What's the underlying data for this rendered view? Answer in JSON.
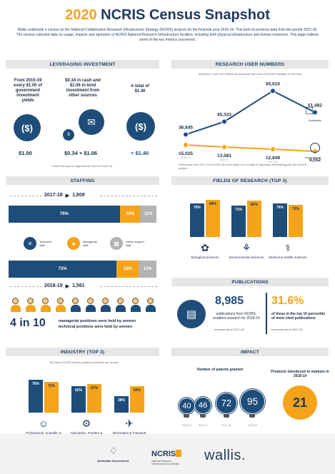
{
  "title": {
    "year": "2020",
    "rest": "NCRIS Census Snapshot"
  },
  "intro": "Wallis undertook a census on the National Collaborative Research Infrastructure Strategy (NCRIS) projects for the financial year 2018-19. This built on previous data from the period 2015-18. The census collected data on usage, impacts and operation of NCRIS National Research Infrastructure facilities, including both physical infrastructure and human resources. This page outlines some of the key metrics uncovered.",
  "investment": {
    "header": "LEVERAGING INVESTMENT",
    "col1": "From 2015-19 every $1.00 of government investment yields",
    "col2": "$0.34 in cash and $1.06 in-kind investment from other sources",
    "col3": "A total of $1.40",
    "v1": "$1.00",
    "v2": "$0.34 + $1.06",
    "v3": "= $1.40",
    "note": "Fixed 2019 prices adjusted for 2015 to 2019-19"
  },
  "users": {
    "header": "RESEARCH USER NUMBERS",
    "sub": "Research Users are defined as personal end-users of NCRIS facilities or services",
    "note": "*Decrease from 2017-18 to 2018-19 is the result of a change in reporting methodology by one NCRIS project",
    "aus_label": "Australian",
    "intl_label": "International"
  },
  "staffing": {
    "header": "STAFFING",
    "y1": "2017-18",
    "n1": "1,809",
    "y2": "2018-19",
    "n2": "1,561",
    "leg1": "Technical staff",
    "leg2": "Managerial staff",
    "leg3": "Admin support staff",
    "ratio": "4 in 10",
    "ratio1": "managerial positions were held by women",
    "ratio2": "technical positions were held by women"
  },
  "fields": {
    "header": "FIELDS OF RESEARCH (TOP 3)",
    "items": [
      {
        "label": "Biological Sciences",
        "a": "76%",
        "b": "84%"
      },
      {
        "label": "Environmental Sciences",
        "a": "71%",
        "b": "82%"
      },
      {
        "label": "Medical & Health Sciences",
        "a": "76%",
        "b": "72%"
      }
    ]
  },
  "pubs": {
    "header": "PUBLICATIONS",
    "n": "8,985",
    "desc": "publications from NCRIS-enabled research for 2018-19",
    "trend": "Increase since 2017-18",
    "pct": "31.6%",
    "pct_desc": "of these in the top 10 percentile of most cited publications",
    "pct_trend": "Decrease since 2017-18"
  },
  "industry": {
    "header": "INDUSTRY (TOP 3)",
    "sub": "Top three NCRIS industry partner industries by income",
    "items": [
      {
        "label": "Professional, Scientific & Technical Services",
        "a": "76%",
        "b": "71%"
      },
      {
        "label": "Agriculture, Forestry & Fishing",
        "a": "62%",
        "b": "67%"
      },
      {
        "label": "Information & Transport",
        "a": "38%",
        "b": "62%"
      }
    ]
  },
  "impact": {
    "header": "IMPACT",
    "patents_title": "Number of patents granted",
    "products_title": "Products introduced to markets in 2018-19",
    "products": "21"
  },
  "footer": {
    "gov": "Australian Government",
    "ncris": "NCRIS",
    "ncris_sub": "National Research Infrastructure for Australia",
    "wallis": "wallis."
  },
  "colors": {
    "navy": "#1e4d7a",
    "orange": "#f5a31a",
    "grey": "#b3b3b3"
  },
  "chart_data": [
    {
      "type": "line",
      "x": [
        "2015-16",
        "2016-17",
        "2017-18",
        "2018-19"
      ],
      "series": [
        {
          "name": "Australian",
          "values": [
            36845,
            45333,
            65610,
            51482
          ]
        },
        {
          "name": "International",
          "values": [
            15025,
            13581,
            12849,
            9552
          ]
        }
      ],
      "labels": {
        "Australian": [
          "36,845",
          "45,333",
          "65,610",
          "51,482"
        ],
        "International": [
          "15,025",
          "13,581",
          "12,849",
          "9,552"
        ]
      }
    },
    {
      "type": "bar",
      "categories": [
        "2017-18",
        "2018-19"
      ],
      "series": [
        {
          "name": "Technical staff",
          "values": [
            76,
            73
          ]
        },
        {
          "name": "Managerial staff",
          "values": [
            14,
            15
          ]
        },
        {
          "name": "Admin support staff",
          "values": [
            11,
            12
          ]
        }
      ],
      "labels": {
        "Technical staff": [
          "76%",
          "73%"
        ],
        "Managerial staff": [
          "14%",
          "15%"
        ],
        "Admin support staff": [
          "11%",
          "12%"
        ]
      }
    },
    {
      "type": "bar",
      "categories": [
        "2015-16",
        "2016-17",
        "2017-18",
        "2018-19"
      ],
      "values": [
        40,
        46,
        72,
        95
      ]
    }
  ]
}
